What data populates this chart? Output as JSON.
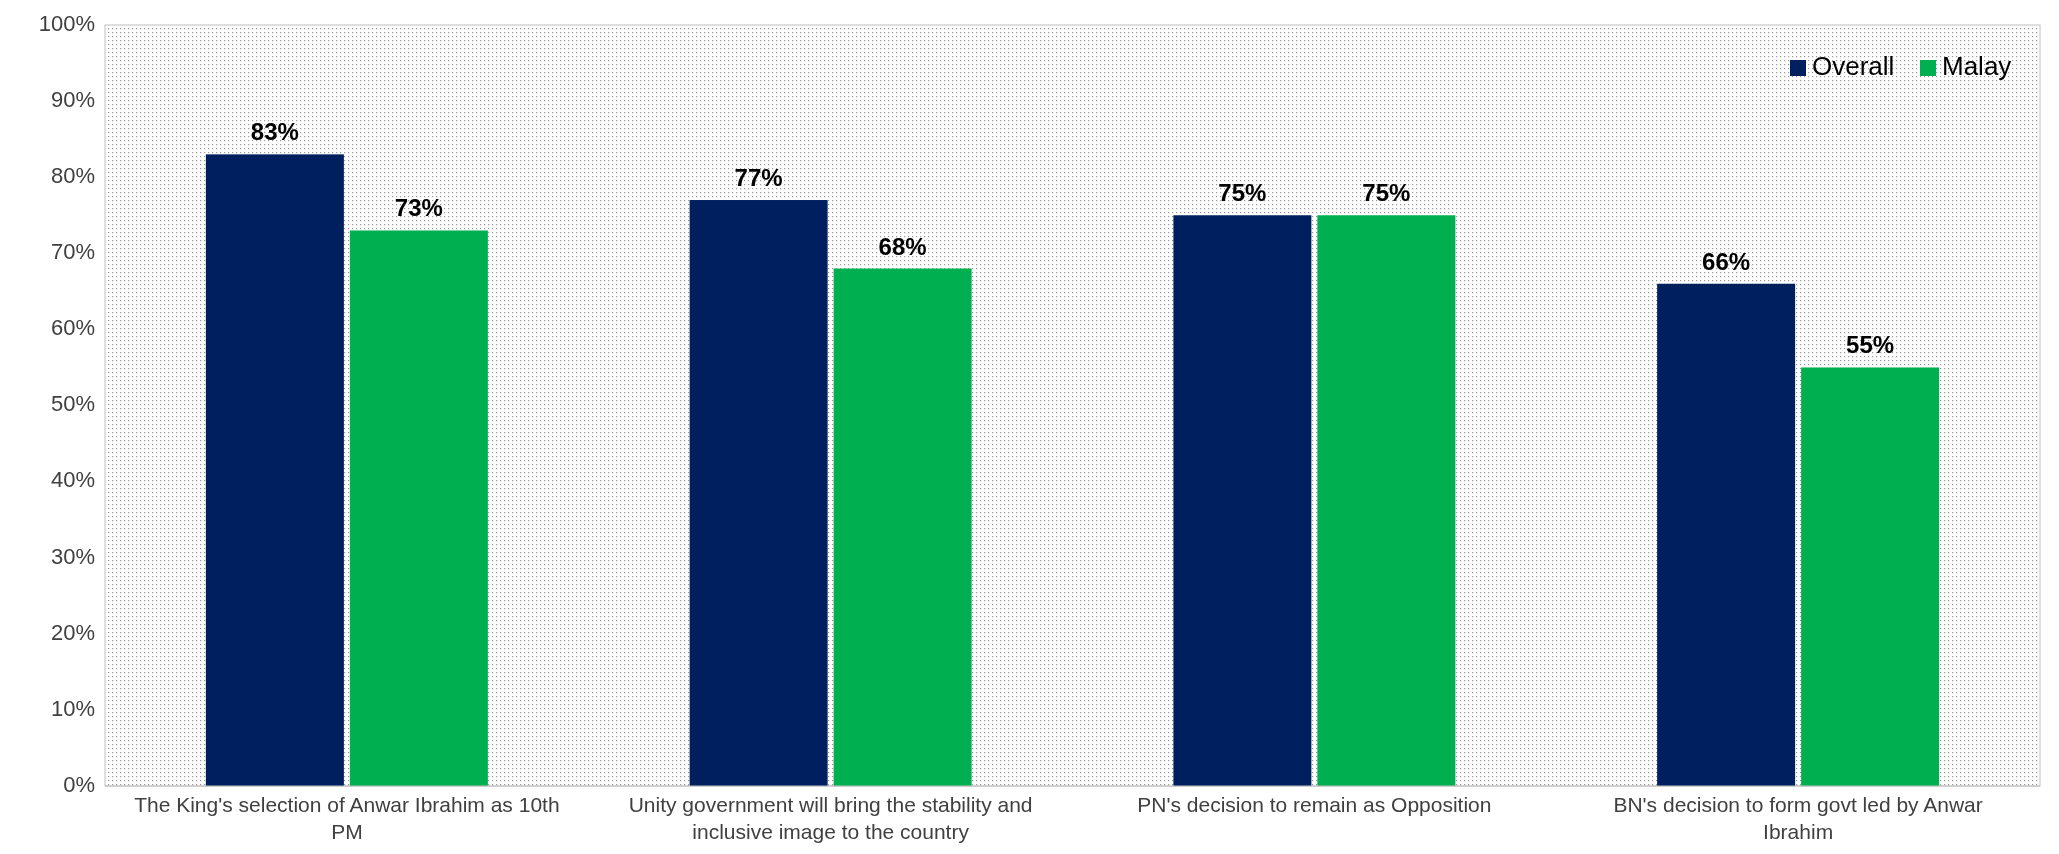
{
  "chart_data": {
    "type": "bar",
    "categories": [
      "The King's selection of Anwar Ibrahim as 10th PM",
      "Unity government will bring the stability and inclusive image to the country",
      "PN's decision to remain as Opposition",
      "BN's decision to form govt led by Anwar Ibrahim"
    ],
    "series": [
      {
        "name": "Overall",
        "color": "#001f5f",
        "values": [
          83,
          77,
          75,
          66
        ],
        "value_labels": [
          "83%",
          "77%",
          "75%",
          "66%"
        ]
      },
      {
        "name": "Malay",
        "color": "#00b050",
        "values": [
          73,
          68,
          75,
          55
        ],
        "value_labels": [
          "73%",
          "68%",
          "75%",
          "55%"
        ]
      }
    ],
    "ylim": [
      0,
      100
    ],
    "yticks": [
      {
        "value": 0,
        "label": "0%"
      },
      {
        "value": 10,
        "label": "10%"
      },
      {
        "value": 20,
        "label": "20%"
      },
      {
        "value": 30,
        "label": "30%"
      },
      {
        "value": 40,
        "label": "40%"
      },
      {
        "value": 50,
        "label": "50%"
      },
      {
        "value": 60,
        "label": "60%"
      },
      {
        "value": 70,
        "label": "70%"
      },
      {
        "value": 80,
        "label": "80%"
      },
      {
        "value": 90,
        "label": "90%"
      },
      {
        "value": 100,
        "label": "100%"
      }
    ],
    "legend": "top right"
  }
}
